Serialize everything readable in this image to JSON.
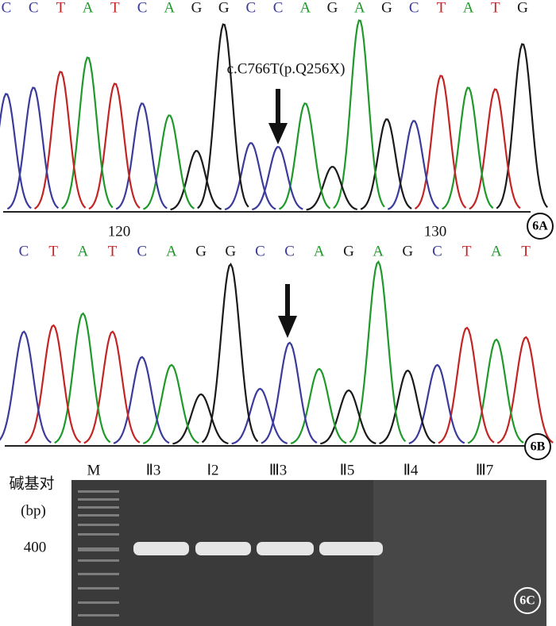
{
  "panel_a": {
    "label": "6A",
    "annotation": "c.C766T(p.Q256X)",
    "bases": [
      "C",
      "C",
      "T",
      "A",
      "T",
      "C",
      "A",
      "G",
      "G",
      "C",
      "C",
      "A",
      "G",
      "A",
      "G",
      "C",
      "T",
      "A",
      "T",
      "G"
    ]
  },
  "position_ticks": [
    120,
    130
  ],
  "panel_b": {
    "label": "6B",
    "bases": [
      "C",
      "T",
      "A",
      "T",
      "C",
      "A",
      "G",
      "G",
      "C",
      "C",
      "A",
      "G",
      "A",
      "G",
      "C",
      "T",
      "A",
      "T"
    ]
  },
  "panel_c": {
    "label": "6C",
    "y_axis_title": "碱基对",
    "y_axis_unit": "(bp)",
    "size_marker": 400,
    "lanes": [
      "M",
      "Ⅱ3",
      "Ⅰ2",
      "Ⅲ3",
      "Ⅱ5",
      "Ⅱ4",
      "Ⅲ7"
    ]
  },
  "base_colors": {
    "A": "#1f9a2a",
    "C": "#3b3b9c",
    "G": "#1a1a1a",
    "T": "#c42424"
  }
}
